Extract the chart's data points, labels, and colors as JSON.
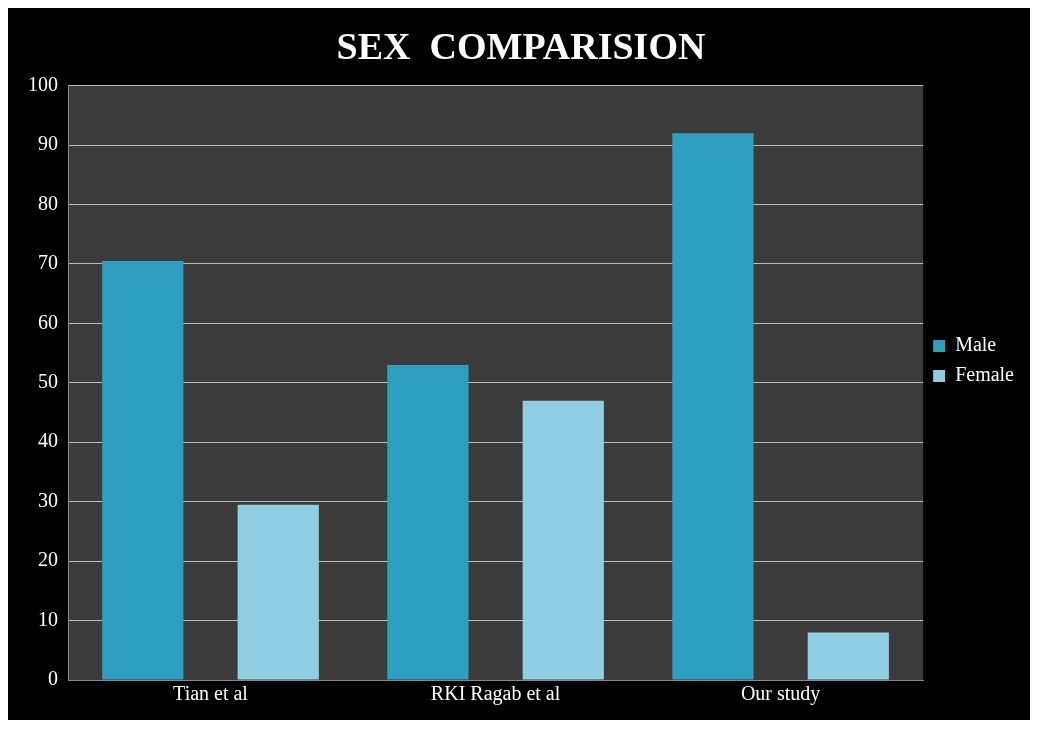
{
  "chart_data": {
    "type": "bar",
    "title": "SEX  COMPARISION",
    "categories": [
      "Tian et al",
      "RKI Ragab et al",
      "Our study"
    ],
    "series": [
      {
        "name": "Male",
        "color": "#2e9fc0",
        "values": [
          70.5,
          53,
          92
        ]
      },
      {
        "name": "Female",
        "color": "#8fcde3",
        "values": [
          29.5,
          47,
          8
        ]
      }
    ],
    "ylim": [
      0,
      100
    ],
    "yticks": [
      0,
      10,
      20,
      30,
      40,
      50,
      60,
      70,
      80,
      90,
      100
    ],
    "grid": "y",
    "legend": "right"
  }
}
